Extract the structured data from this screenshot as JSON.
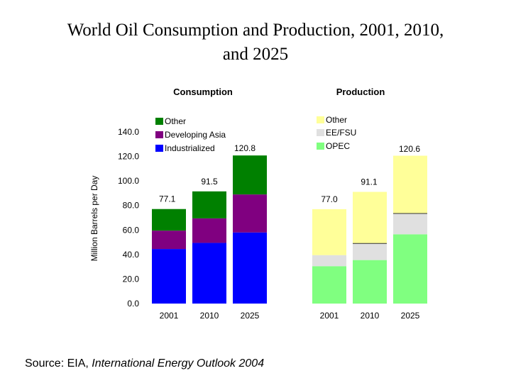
{
  "title": {
    "line1": "World Oil Consumption and Production, 2001, 2010,",
    "line2": "and 2025"
  },
  "source": {
    "prefix": "Source:  EIA, ",
    "publication": "International Energy Outlook 2004"
  },
  "colors": {
    "industrialized": "#0000ff",
    "developing_asia": "#800080",
    "consumption_other": "#008000",
    "opec": "#80ff80",
    "ee_fsu": "#e0e0e0",
    "production_other": "#ffff99"
  },
  "chart_data": [
    {
      "type": "bar",
      "stacked": true,
      "title": "Consumption",
      "ylabel": "Million Barrels per Day",
      "ylim": [
        0,
        140
      ],
      "yticks": [
        "0.0",
        "20.0",
        "40.0",
        "60.0",
        "80.0",
        "100.0",
        "120.0",
        "140.0"
      ],
      "categories": [
        "2001",
        "2010",
        "2025"
      ],
      "series": [
        {
          "name": "Industrialized",
          "values": [
            44.5,
            49.5,
            58.0
          ]
        },
        {
          "name": "Developing Asia",
          "values": [
            15.0,
            20.0,
            31.0
          ]
        },
        {
          "name": "Other",
          "values": [
            17.6,
            22.0,
            31.8
          ]
        }
      ],
      "totals": [
        "77.1",
        "91.5",
        "120.8"
      ],
      "legend": [
        "Other",
        "Developing Asia",
        "Industrialized"
      ]
    },
    {
      "type": "bar",
      "stacked": true,
      "title": "Production",
      "ylim": [
        0,
        140
      ],
      "categories": [
        "2001",
        "2010",
        "2025"
      ],
      "series": [
        {
          "name": "OPEC",
          "values": [
            30.5,
            35.5,
            56.5
          ]
        },
        {
          "name": "EE/FSU",
          "values": [
            9.0,
            13.5,
            17.0
          ]
        },
        {
          "name": "Other",
          "values": [
            37.5,
            42.1,
            47.1
          ]
        }
      ],
      "totals": [
        "77.0",
        "91.1",
        "120.6"
      ],
      "legend": [
        "Other",
        "EE/FSU",
        "OPEC"
      ]
    }
  ]
}
